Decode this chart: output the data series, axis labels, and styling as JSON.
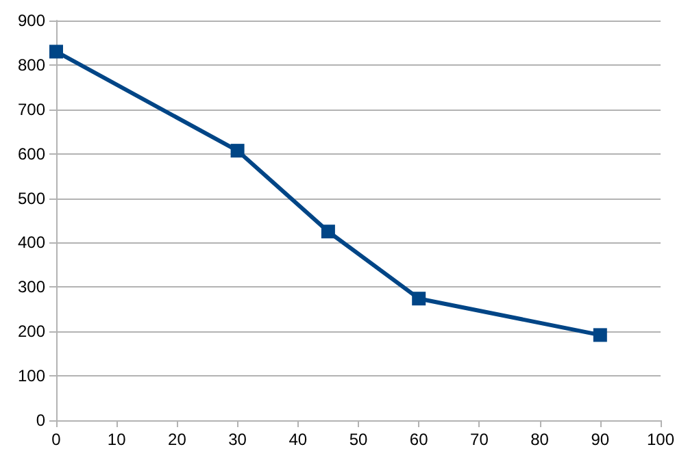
{
  "chart_data": {
    "type": "line",
    "x": [
      0,
      30,
      45,
      60,
      90
    ],
    "series": [
      {
        "color": "#004586",
        "values": [
          830,
          607,
          425,
          274,
          192
        ]
      }
    ],
    "xlim": [
      0,
      100
    ],
    "xticks": [
      0,
      10,
      20,
      30,
      40,
      50,
      60,
      70,
      80,
      90,
      100
    ],
    "ylim": [
      0,
      900
    ],
    "yticks": [
      0,
      100,
      200,
      300,
      400,
      500,
      600,
      700,
      800,
      900
    ],
    "grid": "y",
    "marker": "square",
    "line_style": "solid"
  }
}
